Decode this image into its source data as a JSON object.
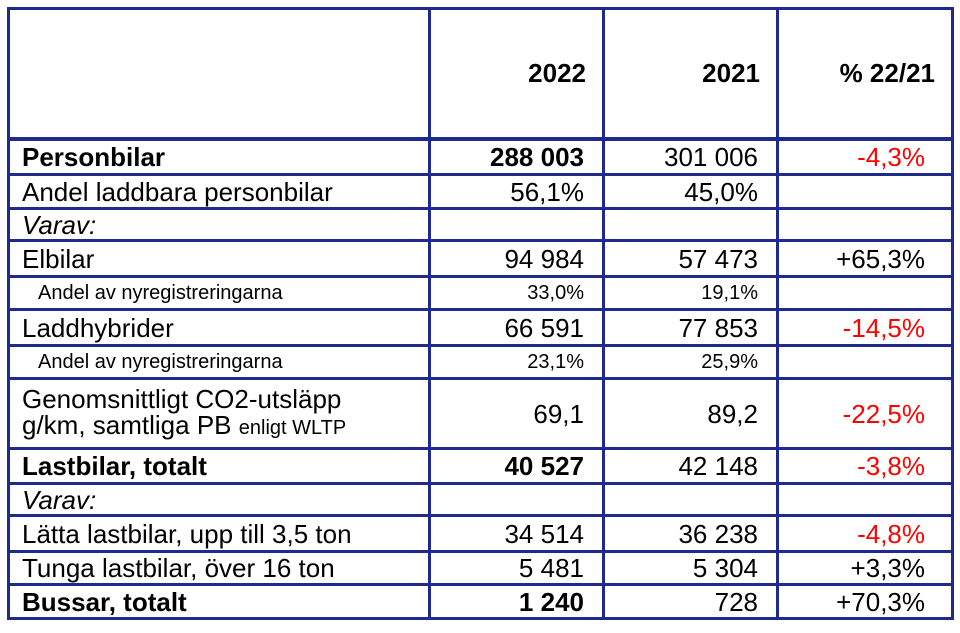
{
  "header": {
    "col_label": "",
    "col_2022": "2022",
    "col_2021": "2021",
    "col_change": "% 22/21"
  },
  "rows": [
    {
      "label": "Personbilar",
      "v2022": "288 003",
      "v2021": "301 006",
      "change": "-4,3%"
    },
    {
      "label": "Andel laddbara personbilar",
      "v2022": "56,1%",
      "v2021": "45,0%",
      "change": ""
    },
    {
      "label": "Varav:",
      "v2022": "",
      "v2021": "",
      "change": ""
    },
    {
      "label": "Elbilar",
      "v2022": "94 984",
      "v2021": "57 473",
      "change": "+65,3%"
    },
    {
      "label": "Andel av nyregistreringarna",
      "v2022": "33,0%",
      "v2021": "19,1%",
      "change": ""
    },
    {
      "label": "Laddhybrider",
      "v2022": "66 591",
      "v2021": "77 853",
      "change": "-14,5%"
    },
    {
      "label": "Andel av nyregistreringarna",
      "v2022": "23,1%",
      "v2021": "25,9%",
      "change": ""
    },
    {
      "label": "Genomsnittligt CO2-utsläpp",
      "label2": "g/km, samtliga PB",
      "label2_suffix": "enligt WLTP",
      "v2022": "69,1",
      "v2021": "89,2",
      "change": "-22,5%"
    },
    {
      "label": "Lastbilar, totalt",
      "v2022": "40 527",
      "v2021": "42 148",
      "change": "-3,8%"
    },
    {
      "label": "Varav:",
      "v2022": "",
      "v2021": "",
      "change": ""
    },
    {
      "label": "Lätta lastbilar, upp till 3,5 ton",
      "v2022": "34 514",
      "v2021": "36 238",
      "change": "-4,8%"
    },
    {
      "label": "Tunga lastbilar, över 16 ton",
      "v2022": "5 481",
      "v2021": "5 304",
      "change": "+3,3%"
    },
    {
      "label": "Bussar, totalt",
      "v2022": "1 240",
      "v2021": "728",
      "change": "+70,3%"
    }
  ],
  "colors": {
    "border": "#1f2a8c",
    "negative": "#ff0000",
    "text": "#000000"
  }
}
